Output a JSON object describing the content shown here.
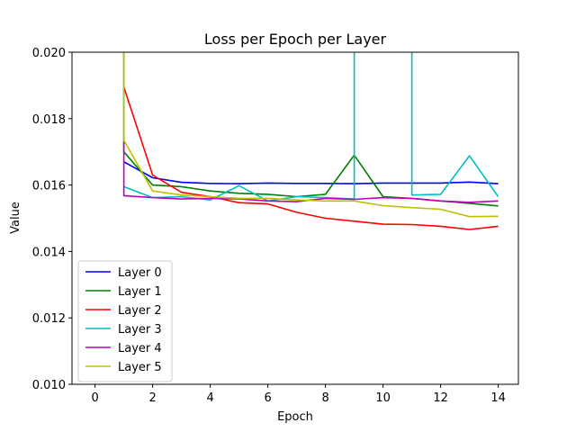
{
  "chart_data": {
    "type": "line",
    "title": "Loss per Epoch per Layer",
    "xlabel": "Epoch",
    "ylabel": "Value",
    "xlim": [
      -0.8,
      14.7
    ],
    "ylim": [
      0.01,
      0.02
    ],
    "x_ticks": [
      0,
      2,
      4,
      6,
      8,
      10,
      12,
      14
    ],
    "y_ticks": [
      0.01,
      0.012,
      0.014,
      0.016,
      0.018,
      0.02
    ],
    "y_tick_labels": [
      "0.010",
      "0.012",
      "0.014",
      "0.016",
      "0.018",
      "0.020"
    ],
    "grid": false,
    "legend_position": "lower-left",
    "series": [
      {
        "name": "Layer 0",
        "color": "#0000ff",
        "x": [
          1,
          2,
          3,
          4,
          5,
          6,
          7,
          8,
          9,
          10,
          11,
          12,
          13,
          14
        ],
        "y": [
          0.0167,
          0.01622,
          0.01608,
          0.01605,
          0.01604,
          0.01606,
          0.01605,
          0.01605,
          0.01604,
          0.01606,
          0.01606,
          0.01606,
          0.01609,
          0.01604
        ]
      },
      {
        "name": "Layer 1",
        "color": "#008000",
        "x": [
          1,
          1,
          2,
          3,
          4,
          5,
          6,
          7,
          8,
          9,
          10,
          11,
          12,
          13,
          14
        ],
        "y": [
          0.0205,
          0.017,
          0.016,
          0.01595,
          0.01582,
          0.01575,
          0.01572,
          0.01565,
          0.01572,
          0.0169,
          0.01565,
          0.0156,
          0.01552,
          0.01545,
          0.01537
        ]
      },
      {
        "name": "Layer 2",
        "color": "#ff0000",
        "x": [
          1,
          2,
          3,
          4,
          5,
          6,
          7,
          8,
          9,
          10,
          11,
          12,
          13,
          14
        ],
        "y": [
          0.01895,
          0.0163,
          0.01578,
          0.01565,
          0.01547,
          0.01543,
          0.01518,
          0.015,
          0.01491,
          0.01482,
          0.01481,
          0.01476,
          0.01466,
          0.01476
        ]
      },
      {
        "name": "Layer 3",
        "color": "#00bfbf",
        "x": [
          1,
          2,
          3,
          4,
          5,
          6,
          7,
          8,
          9,
          9,
          11,
          11,
          12,
          13,
          14
        ],
        "y": [
          0.01595,
          0.01562,
          0.01565,
          0.01555,
          0.01598,
          0.01552,
          0.01565,
          0.01562,
          0.01558,
          0.0205,
          0.0205,
          0.0157,
          0.01572,
          0.01688,
          0.01565
        ]
      },
      {
        "name": "Layer 4",
        "color": "#bf00bf",
        "x": [
          1,
          1,
          2,
          3,
          4,
          5,
          6,
          7,
          8,
          9,
          10,
          11,
          12,
          13,
          14
        ],
        "y": [
          0.0173,
          0.01568,
          0.01562,
          0.01558,
          0.0156,
          0.01558,
          0.01552,
          0.0155,
          0.0156,
          0.01557,
          0.01562,
          0.0156,
          0.01552,
          0.01548,
          0.01552
        ]
      },
      {
        "name": "Layer 5",
        "color": "#bfbf00",
        "x": [
          1,
          1,
          2,
          3,
          4,
          5,
          6,
          7,
          8,
          9,
          10,
          11,
          12,
          13,
          14
        ],
        "y": [
          0.0205,
          0.01735,
          0.01582,
          0.0157,
          0.01565,
          0.0156,
          0.0156,
          0.01555,
          0.01552,
          0.01552,
          0.01538,
          0.01532,
          0.01527,
          0.01505,
          0.01506
        ]
      }
    ]
  }
}
